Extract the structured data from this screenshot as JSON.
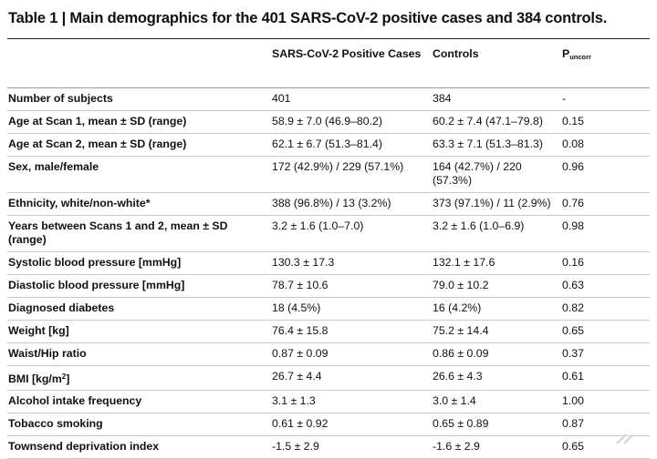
{
  "title": "Table 1 | Main demographics for the 401 SARS-CoV-2 positive cases and 384 controls.",
  "header": {
    "col1": "SARS-CoV-2 Positive Cases",
    "col2": "Controls",
    "col3_main": "P",
    "col3_sub": "uncorr"
  },
  "rows": [
    {
      "label": "Number of subjects",
      "cases": "401",
      "controls": "384",
      "p": "-"
    },
    {
      "label": "Age at Scan 1, mean ± SD (range)",
      "cases": "58.9 ± 7.0 (46.9–80.2)",
      "controls": "60.2 ± 7.4 (47.1–79.8)",
      "p": "0.15"
    },
    {
      "label": "Age at Scan 2, mean ± SD (range)",
      "cases": "62.1 ± 6.7 (51.3–81.4)",
      "controls": "63.3 ± 7.1 (51.3–81.3)",
      "p": "0.08"
    },
    {
      "label": "Sex, male/female",
      "cases": "172 (42.9%) / 229 (57.1%)",
      "controls": "164 (42.7%) / 220 (57.3%)",
      "p": "0.96"
    },
    {
      "label": "Ethnicity, white/non-white*",
      "cases": "388 (96.8%) / 13 (3.2%)",
      "controls": "373 (97.1%) / 11 (2.9%)",
      "p": "0.76"
    },
    {
      "label": "Years between Scans 1 and 2, mean ± SD (range)",
      "cases": "3.2 ± 1.6 (1.0–7.0)",
      "controls": "3.2 ± 1.6 (1.0–6.9)",
      "p": "0.98"
    },
    {
      "label": "Systolic blood pressure [mmHg]",
      "cases": "130.3 ± 17.3",
      "controls": "132.1 ± 17.6",
      "p": "0.16"
    },
    {
      "label": "Diastolic blood pressure [mmHg]",
      "cases": "78.7 ± 10.6",
      "controls": "79.0 ± 10.2",
      "p": "0.63"
    },
    {
      "label": "Diagnosed diabetes",
      "cases": "18 (4.5%)",
      "controls": "16 (4.2%)",
      "p": "0.82"
    },
    {
      "label": "Weight [kg]",
      "cases": "76.4 ± 15.8",
      "controls": "75.2 ± 14.4",
      "p": "0.65"
    },
    {
      "label": "Waist/Hip ratio",
      "cases": "0.87 ± 0.09",
      "controls": "0.86 ± 0.09",
      "p": "0.37"
    },
    {
      "label_main": "BMI [kg/m",
      "label_sup": "2",
      "label_end": "]",
      "cases": "26.7 ± 4.4",
      "controls": "26.6 ± 4.3",
      "p": "0.61"
    },
    {
      "label": "Alcohol intake frequency",
      "cases": "3.1 ± 1.3",
      "controls": "3.0 ± 1.4",
      "p": "1.00"
    },
    {
      "label": "Tobacco smoking",
      "cases": "0.61 ± 0.92",
      "controls": "0.65 ± 0.89",
      "p": "0.87"
    },
    {
      "label": "Townsend deprivation index",
      "cases": "-1.5 ± 2.9",
      "controls": "-1.6 ± 2.9",
      "p": "0.65"
    }
  ]
}
